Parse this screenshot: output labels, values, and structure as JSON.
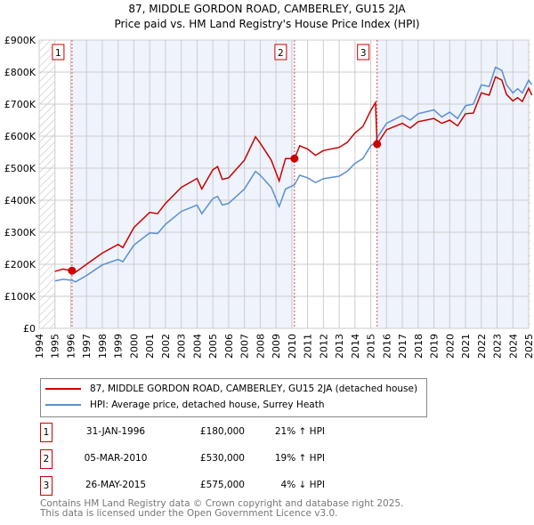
{
  "title": "87, MIDDLE GORDON ROAD, CAMBERLEY, GU15 2JA",
  "subtitle": "Price paid vs. HM Land Registry's House Price Index (HPI)",
  "colors": {
    "property": "#cc0000",
    "hpi": "#5b8fd0",
    "band": "#eef3fc"
  },
  "chart_data": {
    "type": "line",
    "title": "87, MIDDLE GORDON ROAD, CAMBERLEY, GU15 2JA — Price paid vs. HM Land Registry's House Price Index (HPI)",
    "xlim": [
      1994,
      2025
    ],
    "ylim": [
      0,
      900000
    ],
    "x_ticks": [
      "1994",
      "1995",
      "1996",
      "1997",
      "1998",
      "1999",
      "2000",
      "2001",
      "2002",
      "2003",
      "2004",
      "2005",
      "2006",
      "2007",
      "2008",
      "2009",
      "2010",
      "2011",
      "2012",
      "2013",
      "2014",
      "2015",
      "2016",
      "2017",
      "2018",
      "2019",
      "2020",
      "2021",
      "2022",
      "2023",
      "2024",
      "2025"
    ],
    "y_ticks": [
      {
        "v": 0,
        "label": "£0"
      },
      {
        "v": 100000,
        "label": "£100K"
      },
      {
        "v": 200000,
        "label": "£200K"
      },
      {
        "v": 300000,
        "label": "£300K"
      },
      {
        "v": 400000,
        "label": "£400K"
      },
      {
        "v": 500000,
        "label": "£500K"
      },
      {
        "v": 600000,
        "label": "£600K"
      },
      {
        "v": 700000,
        "label": "£700K"
      },
      {
        "v": 800000,
        "label": "£800K"
      },
      {
        "v": 900000,
        "label": "£900K"
      }
    ],
    "series": [
      {
        "name": "87, MIDDLE GORDON ROAD, CAMBERLEY, GU15 2JA (detached house)",
        "color": "#cc0000",
        "x": [
          1995,
          1995.5,
          1996.08,
          1996.3,
          1997,
          1998,
          1999,
          1999.3,
          2000,
          2001,
          2001.5,
          2002,
          2003,
          2004,
          2004.3,
          2005,
          2005.3,
          2005.6,
          2006,
          2007,
          2007.7,
          2008,
          2008.7,
          2009.2,
          2009.6,
          2010.17,
          2010.5,
          2011,
          2011.5,
          2012,
          2013,
          2013.5,
          2014,
          2014.5,
          2015,
          2015.3,
          2015.4,
          2016,
          2017,
          2017.5,
          2018,
          2019,
          2019.5,
          2020,
          2020.5,
          2021,
          2021.5,
          2022,
          2022.5,
          2022.9,
          2023.3,
          2023.6,
          2024,
          2024.3,
          2024.6,
          2025,
          2025.2
        ],
        "y": [
          178000,
          185000,
          180000,
          175000,
          200000,
          235000,
          262000,
          252000,
          315000,
          362000,
          358000,
          390000,
          440000,
          468000,
          435000,
          495000,
          505000,
          465000,
          470000,
          525000,
          598000,
          578000,
          525000,
          460000,
          530000,
          530000,
          570000,
          560000,
          540000,
          555000,
          565000,
          580000,
          610000,
          630000,
          680000,
          705000,
          575000,
          620000,
          640000,
          625000,
          645000,
          655000,
          640000,
          650000,
          632000,
          670000,
          672000,
          735000,
          728000,
          785000,
          775000,
          730000,
          710000,
          720000,
          708000,
          750000,
          728000
        ]
      },
      {
        "name": "HPI: Average price, detached house, Surrey Heath",
        "color": "#5b8fd0",
        "x": [
          1995,
          1995.5,
          1996.08,
          1996.3,
          1997,
          1998,
          1999,
          1999.3,
          2000,
          2001,
          2001.5,
          2002,
          2003,
          2004,
          2004.3,
          2005,
          2005.3,
          2005.6,
          2006,
          2007,
          2007.7,
          2008,
          2008.7,
          2009.2,
          2009.6,
          2010.17,
          2010.5,
          2011,
          2011.5,
          2012,
          2013,
          2013.5,
          2014,
          2014.5,
          2015,
          2015.3,
          2015.4,
          2016,
          2017,
          2017.5,
          2018,
          2019,
          2019.5,
          2020,
          2020.5,
          2021,
          2021.5,
          2022,
          2022.5,
          2022.9,
          2023.3,
          2023.6,
          2024,
          2024.3,
          2024.6,
          2025,
          2025.2
        ],
        "y": [
          148000,
          153000,
          150000,
          145000,
          165000,
          198000,
          215000,
          208000,
          260000,
          298000,
          296000,
          325000,
          365000,
          385000,
          358000,
          405000,
          412000,
          385000,
          390000,
          435000,
          490000,
          478000,
          440000,
          380000,
          435000,
          448000,
          478000,
          470000,
          455000,
          467000,
          475000,
          490000,
          515000,
          530000,
          570000,
          580000,
          595000,
          640000,
          665000,
          650000,
          670000,
          682000,
          660000,
          675000,
          655000,
          695000,
          700000,
          760000,
          755000,
          815000,
          805000,
          760000,
          735000,
          748000,
          735000,
          775000,
          760000
        ]
      }
    ],
    "sales": [
      {
        "label": "1",
        "x": 1996.08,
        "y": 180000,
        "date": "31-JAN-1996",
        "price": "£180,000",
        "hpi": "21% ↑ HPI"
      },
      {
        "label": "2",
        "x": 2010.17,
        "y": 530000,
        "date": "05-MAR-2010",
        "price": "£530,000",
        "hpi": "19% ↑ HPI"
      },
      {
        "label": "3",
        "x": 2015.4,
        "y": 575000,
        "date": "26-MAY-2015",
        "price": "£575,000",
        "hpi": "4% ↓ HPI"
      }
    ],
    "grid": true,
    "legend": "bottom"
  },
  "footer": [
    "Contains HM Land Registry data © Crown copyright and database right 2025.",
    "This data is licensed under the Open Government Licence v3.0."
  ]
}
